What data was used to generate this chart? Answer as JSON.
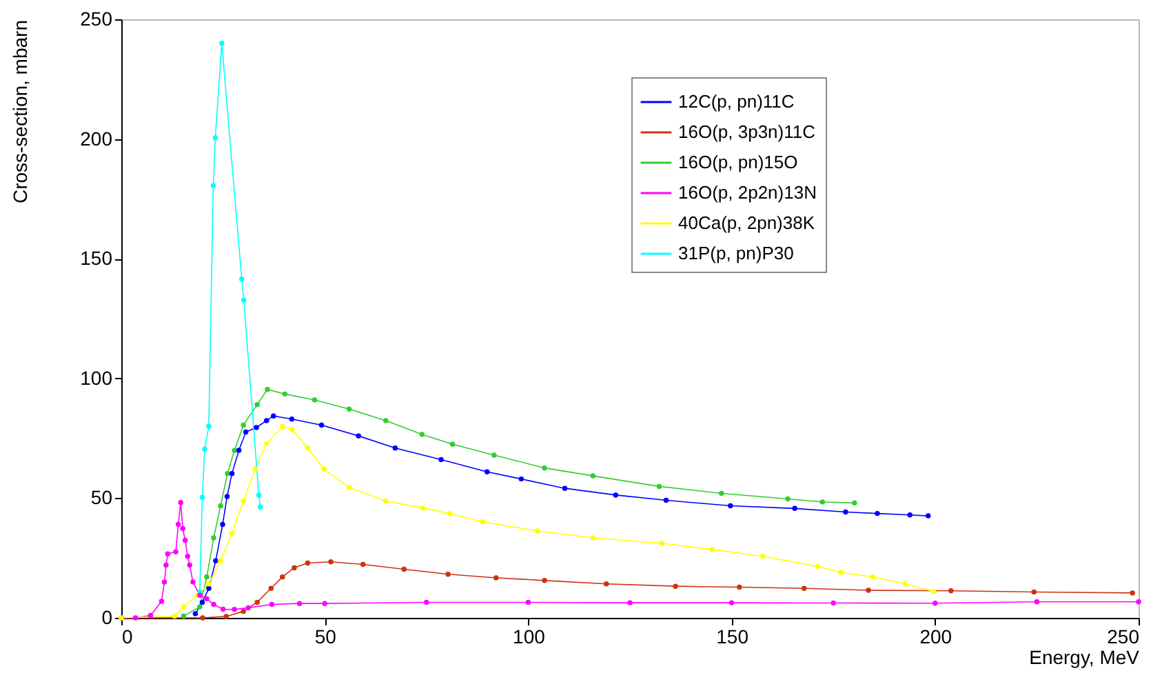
{
  "chart_data": {
    "type": "line",
    "xlabel": "Energy, MeV",
    "ylabel": "Cross-section, mbarn",
    "xlim": [
      0,
      250
    ],
    "ylim": [
      0,
      250
    ],
    "xticks": [
      0,
      50,
      100,
      150,
      200,
      250
    ],
    "yticks": [
      0,
      50,
      100,
      150,
      200,
      250
    ],
    "grid": false,
    "legend": "top right",
    "marker": "circle",
    "line_style": "solid",
    "series": [
      {
        "name": "12C(p, pn)11C",
        "color": "#0000ff",
        "x": [
          18.2,
          19.9,
          21.5,
          23.2,
          24.9,
          26,
          27.2,
          28.9,
          30.6,
          33.2,
          35.7,
          37.4,
          41.9,
          49.2,
          58.3,
          67.3,
          78.6,
          89.9,
          98.3,
          109,
          121.5,
          133.9,
          149.7,
          165.5,
          178,
          185.8,
          193.8,
          198.3
        ],
        "values": [
          1.7,
          6.5,
          12.3,
          23.8,
          39,
          50.7,
          60.3,
          70,
          77.6,
          79.5,
          82.4,
          84.3,
          83,
          80.5,
          76,
          70.9,
          66.1,
          61,
          58,
          54.1,
          51.3,
          49.1,
          46.8,
          45.7,
          44.2,
          43.6,
          43,
          42.6
        ]
      },
      {
        "name": "16O(p, 3p3n)11C",
        "color": "#cc3311",
        "x": [
          0,
          20,
          25.8,
          30,
          33.4,
          36.8,
          39.6,
          42.5,
          45.8,
          51.5,
          59.4,
          69.5,
          80.3,
          92.1,
          104,
          119.2,
          136.2,
          151.9,
          167.8,
          183.6,
          203.9,
          224.3,
          248.5
        ],
        "values": [
          0,
          0,
          0.6,
          2.7,
          6.5,
          12.3,
          17.1,
          20.9,
          22.9,
          23.4,
          22.3,
          20.3,
          18.2,
          16.7,
          15.6,
          14.2,
          13.2,
          12.8,
          12.3,
          11.5,
          11.3,
          10.8,
          10.4
        ]
      },
      {
        "name": "16O(p, pn)15O",
        "color": "#33cc33",
        "x": [
          15.3,
          19.3,
          21,
          22.7,
          24.4,
          26.1,
          27.8,
          30,
          33.4,
          35.9,
          40.2,
          47.5,
          56,
          65,
          73.9,
          81.4,
          91.6,
          104,
          115.9,
          132.2,
          147.5,
          163.8,
          172.3,
          180.2
        ],
        "values": [
          0.7,
          4.6,
          17.1,
          33.4,
          46.8,
          60.3,
          69.9,
          80.5,
          89.1,
          95.4,
          93.5,
          91,
          87.2,
          82.4,
          76.6,
          72.5,
          68,
          62.6,
          59.3,
          54.9,
          52,
          49.7,
          48.4,
          48
        ]
      },
      {
        "name": "16O(p, 2p2n)13N",
        "color": "#ff00ff",
        "x": [
          0,
          3.5,
          7.2,
          9.9,
          10.6,
          11,
          11.4,
          13.4,
          14,
          14.6,
          15.1,
          15.7,
          16.3,
          16.8,
          17.6,
          19.3,
          21,
          22.7,
          25,
          27.8,
          31.2,
          37,
          43.8,
          50,
          75,
          100,
          125,
          150,
          175,
          200,
          225,
          250
        ],
        "values": [
          0,
          0,
          1,
          6.9,
          15,
          22,
          26.7,
          27.6,
          39,
          48.2,
          37.3,
          32.4,
          25.7,
          22,
          15,
          9.4,
          8,
          5.6,
          3.6,
          3.5,
          4.2,
          5.6,
          6,
          6,
          6.5,
          6.5,
          6.3,
          6.3,
          6.2,
          6.1,
          6.7,
          6.7
        ]
      },
      {
        "name": "40Ca(p, 2pn)38K",
        "color": "#ffff00",
        "x": [
          0,
          13.1,
          15.3,
          18.7,
          21.5,
          24.4,
          27.2,
          30,
          32.9,
          35.7,
          39.6,
          42,
          45.8,
          49.8,
          56,
          65,
          74.1,
          80.8,
          88.8,
          102.3,
          115.9,
          132.8,
          145.2,
          157.6,
          171.2,
          176.8,
          184.7,
          192.6,
          199.6
        ],
        "values": [
          0,
          0.7,
          4.6,
          9.4,
          14.2,
          23.8,
          35.3,
          48.8,
          62.2,
          72.8,
          80,
          78.6,
          70.9,
          62.2,
          54.5,
          48.8,
          45.9,
          43.5,
          40.1,
          36.3,
          33.4,
          31.1,
          28.6,
          25.7,
          21.5,
          19,
          17.1,
          14.2,
          11.1
        ]
      },
      {
        "name": "31P(p, pn)P30",
        "color": "#00ffff",
        "x": [
          19.3,
          19.9,
          20.5,
          21.5,
          22.6,
          23.1,
          24.7,
          29.6,
          30.1,
          33.8,
          34.2
        ],
        "values": [
          10.8,
          50.3,
          70.5,
          80,
          180.5,
          200.5,
          240,
          141.5,
          132.7,
          51.3,
          46.3
        ]
      }
    ]
  }
}
